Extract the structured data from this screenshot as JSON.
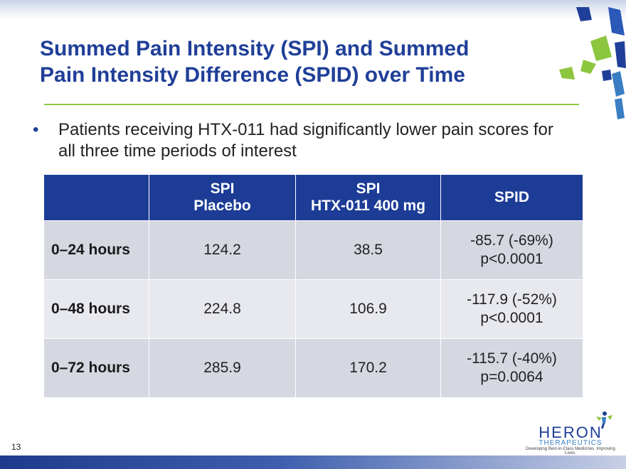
{
  "slide": {
    "title_line1": "Summed Pain Intensity (SPI) and Summed",
    "title_line2": "Pain Intensity Difference (SPID) over Time",
    "bullet_marker": "•",
    "bullet_text": "Patients receiving HTX-011 had significantly lower pain scores for all three time periods of interest",
    "page_number": "13"
  },
  "table": {
    "headers": [
      {
        "line1": "",
        "line2": ""
      },
      {
        "line1": "SPI",
        "line2": "Placebo"
      },
      {
        "line1": "SPI",
        "line2": "HTX-011 400 mg"
      },
      {
        "line1": "SPID",
        "line2": ""
      }
    ],
    "rows": [
      {
        "period": "0–24 hours",
        "placebo": "124.2",
        "htx": "38.5",
        "spid": "-85.7 (-69%)",
        "p": "p<0.0001"
      },
      {
        "period": "0–48 hours",
        "placebo": "224.8",
        "htx": "106.9",
        "spid": "-117.9 (-52%)",
        "p": "p<0.0001"
      },
      {
        "period": "0–72 hours",
        "placebo": "285.9",
        "htx": "170.2",
        "spid": "-115.7 (-40%)",
        "p": "p=0.0064"
      }
    ]
  },
  "logo": {
    "name": "HERON",
    "sub": "THERAPEUTICS",
    "tagline": "Developing Best-in-Class Medicines. Improving Lives.",
    "icon": "heron-figure-icon"
  },
  "colors": {
    "title": "#1f3f98",
    "header_bg": "#1c3c96",
    "rule": "#8cc63f",
    "row_odd": "#d5d7e1",
    "row_even": "#e8e9ef"
  }
}
